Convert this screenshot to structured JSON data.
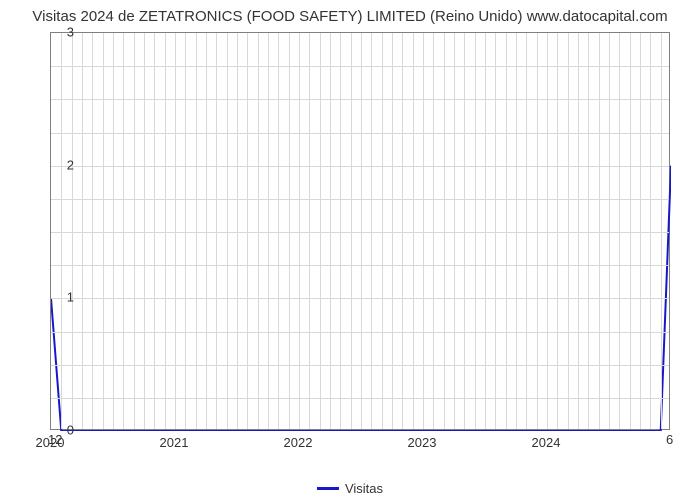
{
  "chart": {
    "type": "line",
    "title": "Visitas 2024 de ZETATRONICS (FOOD SAFETY) LIMITED (Reino Unido) www.datocapital.com",
    "title_fontsize": 15,
    "title_color": "#333333",
    "background_color": "#ffffff",
    "plot_border_color": "#808080",
    "grid_color": "#d8d8d8",
    "series_color": "#1818c8",
    "series_width": 2,
    "xlim": [
      2020,
      2025
    ],
    "ylim": [
      0,
      3
    ],
    "ytick_step": 1,
    "yticks": [
      0,
      1,
      2,
      3
    ],
    "xticks": [
      2020,
      2021,
      2022,
      2023,
      2024
    ],
    "xminor_per_major": 12,
    "x_values": [
      2020.0,
      2020.083,
      2024.917,
      2025.0
    ],
    "y_values": [
      1,
      0,
      0,
      2
    ],
    "start_annotation": "12",
    "end_annotation": "6",
    "legend_label": "Visitas",
    "aspect_w": 620,
    "aspect_h": 398
  }
}
